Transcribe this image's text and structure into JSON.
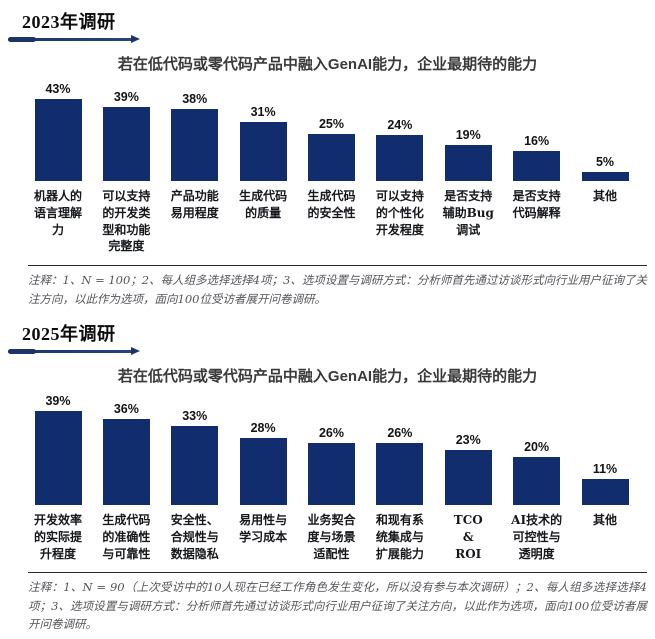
{
  "colors": {
    "bar_fill": "#112d6e",
    "accent_underline": "#1b3569",
    "note_text": "#54565b",
    "title_text": "#3a3a3a"
  },
  "sections": [
    {
      "header": "2023年调研",
      "chart_title": "若在低代码或零代码产品中融入GenAI能力，企业最期待的能力",
      "bars": [
        {
          "label": "机器人的\n语言理解\n力",
          "display": "43%",
          "value": 43
        },
        {
          "label": "可以支持\n的开发类\n型和功能\n完整度",
          "display": "39%",
          "value": 39
        },
        {
          "label": "产品功能\n易用程度",
          "display": "38%",
          "value": 38
        },
        {
          "label": "生成代码\n的质量",
          "display": "31%",
          "value": 31
        },
        {
          "label": "生成代码\n的安全性",
          "display": "25%",
          "value": 25
        },
        {
          "label": "可以支持\n的个性化\n开发程度",
          "display": "24%",
          "value": 24
        },
        {
          "label": "是否支持\n辅助Bug\n调试",
          "display": "19%",
          "value": 19
        },
        {
          "label": "是否支持\n代码解释",
          "display": "16%",
          "value": 16
        },
        {
          "label": "其他",
          "display": "5%",
          "value": 5
        }
      ],
      "note": "注释：1、N = 100；2、每人组多选择选择4项；3、选项设置与调研方式：分析师首先通过访谈形式向行业用户征询了关注方向，以此作为选项，面向100位受访者展开问卷调研。"
    },
    {
      "header": "2025年调研",
      "chart_title": "若在低代码或零代码产品中融入GenAI能力，企业最期待的能力",
      "bars": [
        {
          "label": "开发效率\n的实际提\n升程度",
          "display": "39%",
          "value": 39
        },
        {
          "label": "生成代码\n的准确性\n与可靠性",
          "display": "36%",
          "value": 36
        },
        {
          "label": "安全性、\n合规性与\n数据隐私",
          "display": "33%",
          "value": 33
        },
        {
          "label": "易用性与\n学习成本",
          "display": "28%",
          "value": 28
        },
        {
          "label": "业务契合\n度与场景\n适配性",
          "display": "26%",
          "value": 26
        },
        {
          "label": "和现有系\n统集成与\n扩展能力",
          "display": "26%",
          "value": 26
        },
        {
          "label": "TCO\n&\nROI",
          "display": "23%",
          "value": 23
        },
        {
          "label": "AI技术的\n可控性与\n透明度",
          "display": "20%",
          "value": 20
        },
        {
          "label": "其他",
          "display": "11%",
          "value": 11
        }
      ],
      "note": "注释：1、N = 90（上次受访中的10人现在已经工作角色发生变化，所以没有参与本次调研）；2、每人组多选择选择4项；3、选项设置与调研方式：分析师首先通过访谈形式向行业用户征询了关注方向，以此作为选项，面向100位受访者展开问卷调研。"
    }
  ],
  "chart_data": [
    {
      "type": "bar",
      "subtitle": "2023年调研",
      "title": "若在低代码或零代码产品中融入GenAI能力，企业最期待的能力",
      "categories": [
        "机器人的语言理解力",
        "可以支持的开发类型和功能完整度",
        "产品功能易用程度",
        "生成代码的质量",
        "生成代码的安全性",
        "可以支持的个性化开发程度",
        "是否支持辅助Bug调试",
        "是否支持代码解释",
        "其他"
      ],
      "values": [
        43,
        39,
        38,
        31,
        25,
        24,
        19,
        16,
        5
      ],
      "unit": "%",
      "xlabel": "",
      "ylabel": "",
      "ylim": [
        0,
        45
      ],
      "grid": false,
      "legend": false,
      "data_labels": true,
      "bar_color": "#112d6e"
    },
    {
      "type": "bar",
      "subtitle": "2025年调研",
      "title": "若在低代码或零代码产品中融入GenAI能力，企业最期待的能力",
      "categories": [
        "开发效率的实际提升程度",
        "生成代码的准确性与可靠性",
        "安全性、合规性与数据隐私",
        "易用性与学习成本",
        "业务契合度与场景适配性",
        "和现有系统集成与扩展能力",
        "TCO & ROI",
        "AI技术的可控性与透明度",
        "其他"
      ],
      "values": [
        39,
        36,
        33,
        28,
        26,
        26,
        23,
        20,
        11
      ],
      "unit": "%",
      "xlabel": "",
      "ylabel": "",
      "ylim": [
        0,
        45
      ],
      "grid": false,
      "legend": false,
      "data_labels": true,
      "bar_color": "#112d6e"
    }
  ]
}
